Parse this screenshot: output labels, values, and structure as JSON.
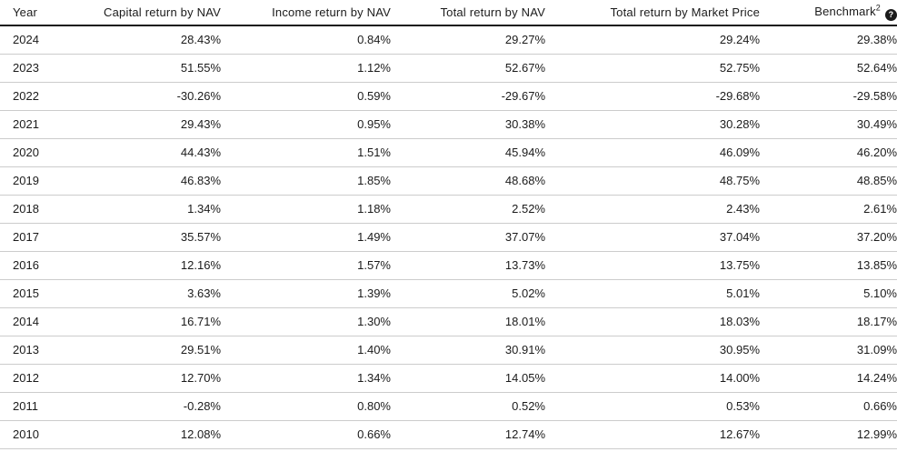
{
  "colors": {
    "text": "#1b1b1b",
    "header_border": "#161616",
    "row_border": "#cccccc",
    "help_icon_bg": "#1a1a1a",
    "help_icon_fg": "#ffffff",
    "background": "#ffffff"
  },
  "table": {
    "columns": [
      {
        "label": "Year",
        "align": "left"
      },
      {
        "label": "Capital return by NAV",
        "align": "right"
      },
      {
        "label": "Income return by NAV",
        "align": "right"
      },
      {
        "label": "Total return by NAV",
        "align": "right"
      },
      {
        "label": "Total return by Market Price",
        "align": "right"
      },
      {
        "label": "Benchmark",
        "superscript": "2",
        "align": "right",
        "help_icon": {
          "name": "question-mark-icon",
          "glyph": "?"
        }
      }
    ],
    "rows": [
      [
        "2024",
        "28.43%",
        "0.84%",
        "29.27%",
        "29.24%",
        "29.38%"
      ],
      [
        "2023",
        "51.55%",
        "1.12%",
        "52.67%",
        "52.75%",
        "52.64%"
      ],
      [
        "2022",
        "-30.26%",
        "0.59%",
        "-29.67%",
        "-29.68%",
        "-29.58%"
      ],
      [
        "2021",
        "29.43%",
        "0.95%",
        "30.38%",
        "30.28%",
        "30.49%"
      ],
      [
        "2020",
        "44.43%",
        "1.51%",
        "45.94%",
        "46.09%",
        "46.20%"
      ],
      [
        "2019",
        "46.83%",
        "1.85%",
        "48.68%",
        "48.75%",
        "48.85%"
      ],
      [
        "2018",
        "1.34%",
        "1.18%",
        "2.52%",
        "2.43%",
        "2.61%"
      ],
      [
        "2017",
        "35.57%",
        "1.49%",
        "37.07%",
        "37.04%",
        "37.20%"
      ],
      [
        "2016",
        "12.16%",
        "1.57%",
        "13.73%",
        "13.75%",
        "13.85%"
      ],
      [
        "2015",
        "3.63%",
        "1.39%",
        "5.02%",
        "5.01%",
        "5.10%"
      ],
      [
        "2014",
        "16.71%",
        "1.30%",
        "18.01%",
        "18.03%",
        "18.17%"
      ],
      [
        "2013",
        "29.51%",
        "1.40%",
        "30.91%",
        "30.95%",
        "31.09%"
      ],
      [
        "2012",
        "12.70%",
        "1.34%",
        "14.05%",
        "14.00%",
        "14.24%"
      ],
      [
        "2011",
        "-0.28%",
        "0.80%",
        "0.52%",
        "0.53%",
        "0.66%"
      ],
      [
        "2010",
        "12.08%",
        "0.66%",
        "12.74%",
        "12.67%",
        "12.99%"
      ]
    ]
  }
}
